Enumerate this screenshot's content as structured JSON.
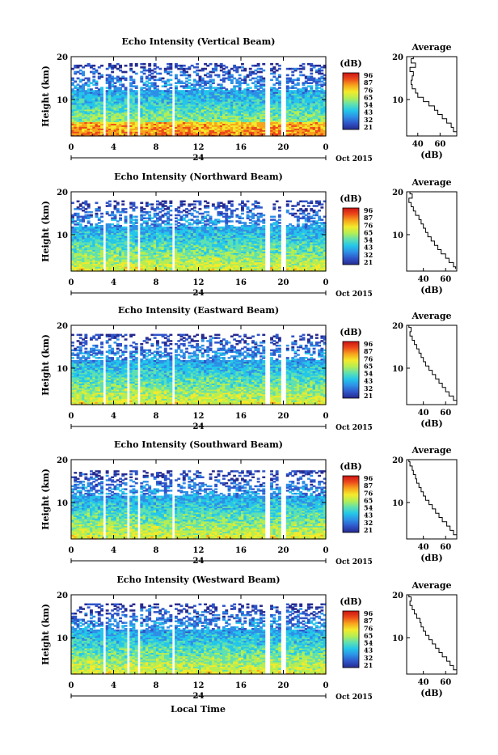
{
  "figure": {
    "xlabel": "Local Time",
    "colorbar_unit": "(dB)",
    "average_title": "Average",
    "average_xlabel": "(dB)"
  },
  "colors": {
    "colormap": [
      "#262a8e",
      "#2f55c9",
      "#2e8fe6",
      "#24c6ea",
      "#5fe0b0",
      "#b4ee54",
      "#f3ea2b",
      "#f7a51c",
      "#ec4a1a",
      "#cc1414"
    ],
    "line": "#000000",
    "background": "#ffffff"
  },
  "chart_data": [
    {
      "type": "heatmap",
      "title": "Echo Intensity (Vertical Beam)",
      "ylabel": "Height (km)",
      "x_ticks": [
        "0",
        "4",
        "8",
        "12",
        "16",
        "20",
        "0"
      ],
      "x_sub": {
        "date_mark": "24",
        "month_year": "Oct 2015"
      },
      "y_ticks": [
        "20",
        "10"
      ],
      "ylim": [
        1.5,
        20
      ],
      "xlim": [
        0,
        24
      ],
      "colorbar_ticks": [
        "96",
        "87",
        "76",
        "65",
        "54",
        "43",
        "32",
        "21"
      ],
      "data_gaps_hours": [
        [
          2.4,
          2.6
        ],
        [
          3.1,
          3.3
        ],
        [
          5.3,
          5.5
        ],
        [
          6.2,
          6.5
        ],
        [
          9.5,
          9.8
        ],
        [
          18.2,
          18.8
        ],
        [
          19.8,
          20.3
        ]
      ],
      "data_top_km": 18.5,
      "average_profile": {
        "x_ticks": [
          "40",
          "60"
        ],
        "xlim": [
          30,
          75
        ],
        "y_ticks": [
          "20",
          "10"
        ],
        "height_km": [
          20,
          19,
          18,
          17,
          16,
          15,
          14,
          13,
          12,
          11,
          10,
          9,
          8,
          7,
          6,
          5,
          4,
          3,
          2
        ],
        "value_db": [
          36,
          34,
          38,
          33,
          36,
          35,
          34,
          35,
          38,
          40,
          45,
          50,
          55,
          58,
          62,
          66,
          70,
          72,
          75
        ]
      }
    },
    {
      "type": "heatmap",
      "title": "Echo Intensity (Northward Beam)",
      "ylabel": "Height (km)",
      "x_ticks": [
        "0",
        "4",
        "8",
        "12",
        "16",
        "20",
        "0"
      ],
      "x_sub": {
        "date_mark": "24",
        "month_year": "Oct 2015"
      },
      "y_ticks": [
        "20",
        "10"
      ],
      "ylim": [
        1.5,
        20
      ],
      "xlim": [
        0,
        24
      ],
      "colorbar_ticks": [
        "96",
        "87",
        "76",
        "65",
        "54",
        "43",
        "32",
        "21"
      ],
      "data_gaps_hours": [
        [
          2.4,
          2.6
        ],
        [
          3.1,
          3.3
        ],
        [
          5.3,
          5.5
        ],
        [
          6.2,
          6.5
        ],
        [
          9.5,
          9.8
        ],
        [
          18.2,
          18.8
        ],
        [
          19.8,
          20.3
        ]
      ],
      "data_top_km": 18.0,
      "average_profile": {
        "x_ticks": [
          "40",
          "60"
        ],
        "xlim": [
          25,
          70
        ],
        "y_ticks": [
          "20",
          "10"
        ],
        "height_km": [
          20,
          19,
          18,
          17,
          16,
          15,
          14,
          13,
          12,
          11,
          10,
          9,
          8,
          7,
          6,
          5,
          4,
          3,
          2
        ],
        "value_db": [
          28,
          30,
          27,
          29,
          31,
          33,
          36,
          38,
          40,
          42,
          44,
          47,
          50,
          53,
          56,
          60,
          63,
          67,
          69
        ]
      }
    },
    {
      "type": "heatmap",
      "title": "Echo Intensity (Eastward Beam)",
      "ylabel": "Height (km)",
      "x_ticks": [
        "0",
        "4",
        "8",
        "12",
        "16",
        "20",
        "0"
      ],
      "x_sub": {
        "date_mark": "24",
        "month_year": "Oct 2015"
      },
      "y_ticks": [
        "20",
        "10"
      ],
      "ylim": [
        1.5,
        20
      ],
      "xlim": [
        0,
        24
      ],
      "colorbar_ticks": [
        "96",
        "87",
        "76",
        "65",
        "54",
        "43",
        "32",
        "21"
      ],
      "data_gaps_hours": [
        [
          2.4,
          2.6
        ],
        [
          3.1,
          3.3
        ],
        [
          5.3,
          5.5
        ],
        [
          6.2,
          6.5
        ],
        [
          9.5,
          9.8
        ],
        [
          18.2,
          18.8
        ],
        [
          19.8,
          20.3
        ]
      ],
      "data_top_km": 18.0,
      "average_profile": {
        "x_ticks": [
          "40",
          "60"
        ],
        "xlim": [
          25,
          70
        ],
        "y_ticks": [
          "20",
          "10"
        ],
        "height_km": [
          20,
          19,
          18,
          17,
          16,
          15,
          14,
          13,
          12,
          11,
          10,
          9,
          8,
          7,
          6,
          5,
          4,
          3,
          2
        ],
        "value_db": [
          27,
          29,
          28,
          30,
          32,
          34,
          36,
          38,
          40,
          42,
          45,
          48,
          51,
          54,
          57,
          60,
          63,
          67,
          70
        ]
      }
    },
    {
      "type": "heatmap",
      "title": "Echo Intensity (Southward Beam)",
      "ylabel": "Height (km)",
      "x_ticks": [
        "0",
        "4",
        "8",
        "12",
        "16",
        "20",
        "0"
      ],
      "x_sub": {
        "date_mark": "24",
        "month_year": "Oct 2015"
      },
      "y_ticks": [
        "20",
        "10"
      ],
      "ylim": [
        1.5,
        20
      ],
      "xlim": [
        0,
        24
      ],
      "colorbar_ticks": [
        "96",
        "87",
        "76",
        "65",
        "54",
        "43",
        "32",
        "21"
      ],
      "data_gaps_hours": [
        [
          2.4,
          2.6
        ],
        [
          3.1,
          3.3
        ],
        [
          5.3,
          5.5
        ],
        [
          6.2,
          6.5
        ],
        [
          9.5,
          9.8
        ],
        [
          18.2,
          18.8
        ],
        [
          19.8,
          20.3
        ]
      ],
      "data_top_km": 17.5,
      "average_profile": {
        "x_ticks": [
          "40",
          "60"
        ],
        "xlim": [
          25,
          70
        ],
        "y_ticks": [
          "20",
          "10"
        ],
        "height_km": [
          20,
          19,
          18,
          17,
          16,
          15,
          14,
          13,
          12,
          11,
          10,
          9,
          8,
          7,
          6,
          5,
          4,
          3,
          2
        ],
        "value_db": [
          27,
          28,
          30,
          31,
          33,
          34,
          36,
          38,
          40,
          42,
          45,
          48,
          51,
          54,
          57,
          61,
          64,
          67,
          70
        ]
      }
    },
    {
      "type": "heatmap",
      "title": "Echo Intensity (Westward Beam)",
      "ylabel": "Height (km)",
      "x_ticks": [
        "0",
        "4",
        "8",
        "12",
        "16",
        "20",
        "0"
      ],
      "x_sub": {
        "date_mark": "24",
        "month_year": "Oct 2015"
      },
      "y_ticks": [
        "20",
        "10"
      ],
      "ylim": [
        1.5,
        20
      ],
      "xlim": [
        0,
        24
      ],
      "colorbar_ticks": [
        "96",
        "87",
        "76",
        "65",
        "54",
        "43",
        "32",
        "21"
      ],
      "data_gaps_hours": [
        [
          2.4,
          2.6
        ],
        [
          3.1,
          3.3
        ],
        [
          5.3,
          5.5
        ],
        [
          6.2,
          6.5
        ],
        [
          9.5,
          9.8
        ],
        [
          18.2,
          18.8
        ],
        [
          19.8,
          20.3
        ]
      ],
      "data_top_km": 18.0,
      "average_profile": {
        "x_ticks": [
          "40",
          "60"
        ],
        "xlim": [
          25,
          70
        ],
        "y_ticks": [
          "20",
          "10"
        ],
        "height_km": [
          20,
          19,
          18,
          17,
          16,
          15,
          14,
          13,
          12,
          11,
          10,
          9,
          8,
          7,
          6,
          5,
          4,
          3,
          2
        ],
        "value_db": [
          27,
          29,
          28,
          30,
          32,
          34,
          37,
          38,
          40,
          42,
          45,
          48,
          51,
          54,
          57,
          61,
          64,
          67,
          70
        ]
      }
    }
  ]
}
